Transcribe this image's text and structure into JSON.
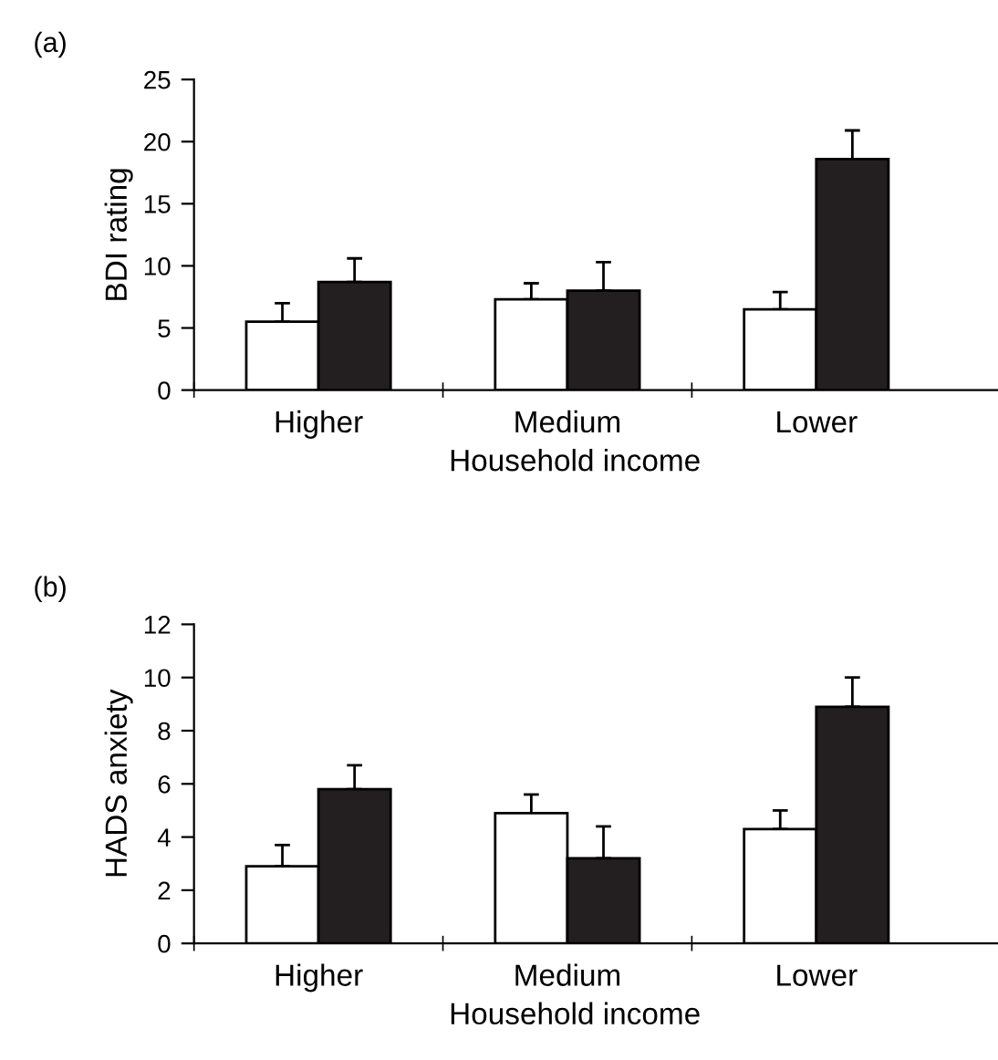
{
  "chart_data": [
    {
      "type": "bar",
      "title": "(a)",
      "xlabel": "Household income",
      "ylabel": "BDI rating",
      "categories": [
        "Higher",
        "Medium",
        "Lower"
      ],
      "ylim": [
        0,
        25
      ],
      "yticks": [
        0,
        5,
        10,
        15,
        20,
        25
      ],
      "grid": false,
      "legend": false,
      "series": [
        {
          "color": "#ffffff",
          "values": [
            5.5,
            7.3,
            6.5
          ],
          "errors": [
            [
              5.5,
              7.0
            ],
            [
              7.3,
              8.6
            ],
            [
              6.5,
              7.9
            ]
          ]
        },
        {
          "color": "#231f20",
          "values": [
            8.7,
            8.0,
            18.6
          ],
          "errors": [
            [
              8.7,
              10.6
            ],
            [
              8.0,
              10.3
            ],
            [
              18.6,
              20.9
            ]
          ]
        }
      ]
    },
    {
      "type": "bar",
      "title": "(b)",
      "xlabel": "Household income",
      "ylabel": "HADS anxiety",
      "categories": [
        "Higher",
        "Medium",
        "Lower"
      ],
      "ylim": [
        0,
        12
      ],
      "yticks": [
        0,
        2,
        4,
        6,
        8,
        10,
        12
      ],
      "grid": false,
      "legend": false,
      "series": [
        {
          "color": "#ffffff",
          "values": [
            2.9,
            4.9,
            4.3
          ],
          "errors": [
            [
              2.9,
              3.7
            ],
            [
              4.9,
              5.6
            ],
            [
              4.3,
              5.0
            ]
          ]
        },
        {
          "color": "#231f20",
          "values": [
            5.8,
            3.2,
            8.9
          ],
          "errors": [
            [
              5.8,
              6.7
            ],
            [
              3.2,
              4.4
            ],
            [
              8.9,
              10.0
            ]
          ]
        }
      ]
    }
  ]
}
